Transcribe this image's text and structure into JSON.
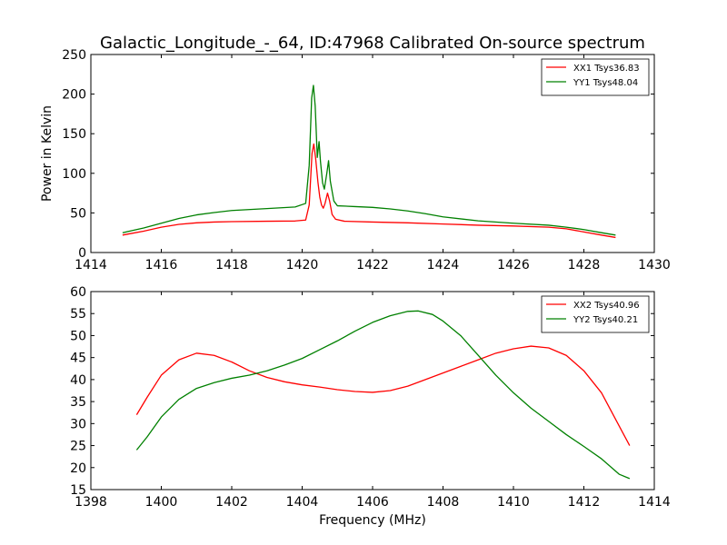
{
  "chart_data": [
    {
      "type": "line",
      "title": "Galactic_Longitude_-_64, ID:47968 Calibrated On-source spectrum",
      "xlabel": "",
      "ylabel": "Power in Kelvin",
      "xlim": [
        1414,
        1430
      ],
      "ylim": [
        0,
        250
      ],
      "xticks": [
        1414,
        1416,
        1418,
        1420,
        1422,
        1424,
        1426,
        1428,
        1430
      ],
      "yticks": [
        0,
        50,
        100,
        150,
        200,
        250
      ],
      "grid": false,
      "legend_position": "top-right",
      "series": [
        {
          "name": "XX1 Tsys36.83",
          "color": "#ff0000",
          "points": [
            [
              1414.9,
              22
            ],
            [
              1415.5,
              27
            ],
            [
              1416.0,
              32
            ],
            [
              1416.5,
              35.5
            ],
            [
              1417.0,
              37.5
            ],
            [
              1417.5,
              38.5
            ],
            [
              1418.0,
              39
            ],
            [
              1419.0,
              39.5
            ],
            [
              1419.8,
              39.8
            ],
            [
              1420.1,
              41
            ],
            [
              1420.2,
              60
            ],
            [
              1420.28,
              125
            ],
            [
              1420.33,
              137
            ],
            [
              1420.38,
              120
            ],
            [
              1420.45,
              88
            ],
            [
              1420.5,
              70
            ],
            [
              1420.55,
              60
            ],
            [
              1420.6,
              56
            ],
            [
              1420.65,
              62
            ],
            [
              1420.72,
              75
            ],
            [
              1420.78,
              65
            ],
            [
              1420.85,
              48
            ],
            [
              1420.95,
              42
            ],
            [
              1421.2,
              39.5
            ],
            [
              1422.0,
              38.5
            ],
            [
              1423.0,
              37.5
            ],
            [
              1424.0,
              36
            ],
            [
              1425.0,
              34.5
            ],
            [
              1426.0,
              33.5
            ],
            [
              1427.0,
              32
            ],
            [
              1427.5,
              30
            ],
            [
              1428.0,
              26
            ],
            [
              1428.5,
              22
            ],
            [
              1428.9,
              19
            ]
          ]
        },
        {
          "name": "YY1 Tsys48.04",
          "color": "#008000",
          "points": [
            [
              1414.9,
              25
            ],
            [
              1415.5,
              31
            ],
            [
              1416.0,
              37
            ],
            [
              1416.5,
              43
            ],
            [
              1417.0,
              47.5
            ],
            [
              1417.5,
              50.5
            ],
            [
              1418.0,
              53
            ],
            [
              1419.0,
              55.5
            ],
            [
              1419.8,
              57.5
            ],
            [
              1420.1,
              62
            ],
            [
              1420.2,
              110
            ],
            [
              1420.27,
              195
            ],
            [
              1420.32,
              211
            ],
            [
              1420.37,
              185
            ],
            [
              1420.43,
              120
            ],
            [
              1420.48,
              140
            ],
            [
              1420.52,
              115
            ],
            [
              1420.58,
              88
            ],
            [
              1420.63,
              80
            ],
            [
              1420.7,
              100
            ],
            [
              1420.75,
              116
            ],
            [
              1420.8,
              90
            ],
            [
              1420.9,
              65
            ],
            [
              1421.0,
              59
            ],
            [
              1421.5,
              58
            ],
            [
              1422.0,
              57
            ],
            [
              1422.5,
              55
            ],
            [
              1423.0,
              52.5
            ],
            [
              1423.5,
              49
            ],
            [
              1424.0,
              45
            ],
            [
              1425.0,
              40
            ],
            [
              1426.0,
              37
            ],
            [
              1427.0,
              34.5
            ],
            [
              1427.5,
              32
            ],
            [
              1428.0,
              29
            ],
            [
              1428.5,
              25
            ],
            [
              1428.9,
              22
            ]
          ]
        }
      ]
    },
    {
      "type": "line",
      "title": "",
      "xlabel": "Frequency (MHz)",
      "ylabel": "",
      "xlim": [
        1398,
        1414
      ],
      "ylim": [
        15,
        60
      ],
      "xticks": [
        1398,
        1400,
        1402,
        1404,
        1406,
        1408,
        1410,
        1412,
        1414
      ],
      "yticks": [
        15,
        20,
        25,
        30,
        35,
        40,
        45,
        50,
        55,
        60
      ],
      "grid": false,
      "legend_position": "top-right",
      "series": [
        {
          "name": "XX2 Tsys40.96",
          "color": "#ff0000",
          "points": [
            [
              1399.3,
              32
            ],
            [
              1399.6,
              36
            ],
            [
              1400.0,
              41
            ],
            [
              1400.5,
              44.5
            ],
            [
              1401.0,
              46
            ],
            [
              1401.5,
              45.5
            ],
            [
              1402.0,
              44
            ],
            [
              1402.5,
              42
            ],
            [
              1403.0,
              40.5
            ],
            [
              1403.5,
              39.5
            ],
            [
              1404.0,
              38.8
            ],
            [
              1404.5,
              38.3
            ],
            [
              1405.0,
              37.7
            ],
            [
              1405.5,
              37.3
            ],
            [
              1406.0,
              37.1
            ],
            [
              1406.5,
              37.5
            ],
            [
              1407.0,
              38.5
            ],
            [
              1407.5,
              40
            ],
            [
              1408.0,
              41.5
            ],
            [
              1408.5,
              43
            ],
            [
              1409.0,
              44.5
            ],
            [
              1409.5,
              46
            ],
            [
              1410.0,
              47
            ],
            [
              1410.5,
              47.6
            ],
            [
              1411.0,
              47.2
            ],
            [
              1411.5,
              45.5
            ],
            [
              1412.0,
              42
            ],
            [
              1412.5,
              37
            ],
            [
              1413.0,
              29.5
            ],
            [
              1413.3,
              25
            ]
          ]
        },
        {
          "name": "YY2 Tsys40.21",
          "color": "#008000",
          "points": [
            [
              1399.3,
              24
            ],
            [
              1399.6,
              27
            ],
            [
              1400.0,
              31.5
            ],
            [
              1400.5,
              35.5
            ],
            [
              1401.0,
              38
            ],
            [
              1401.5,
              39.3
            ],
            [
              1402.0,
              40.3
            ],
            [
              1402.5,
              41
            ],
            [
              1403.0,
              42
            ],
            [
              1403.5,
              43.3
            ],
            [
              1404.0,
              44.8
            ],
            [
              1404.5,
              46.8
            ],
            [
              1405.0,
              48.8
            ],
            [
              1405.5,
              51
            ],
            [
              1406.0,
              53
            ],
            [
              1406.5,
              54.5
            ],
            [
              1407.0,
              55.5
            ],
            [
              1407.3,
              55.6
            ],
            [
              1407.7,
              54.8
            ],
            [
              1408.0,
              53.3
            ],
            [
              1408.5,
              50
            ],
            [
              1409.0,
              45.5
            ],
            [
              1409.5,
              41
            ],
            [
              1410.0,
              37
            ],
            [
              1410.5,
              33.5
            ],
            [
              1411.0,
              30.5
            ],
            [
              1411.5,
              27.5
            ],
            [
              1412.0,
              24.8
            ],
            [
              1412.5,
              22
            ],
            [
              1413.0,
              18.5
            ],
            [
              1413.3,
              17.5
            ]
          ]
        }
      ]
    }
  ]
}
